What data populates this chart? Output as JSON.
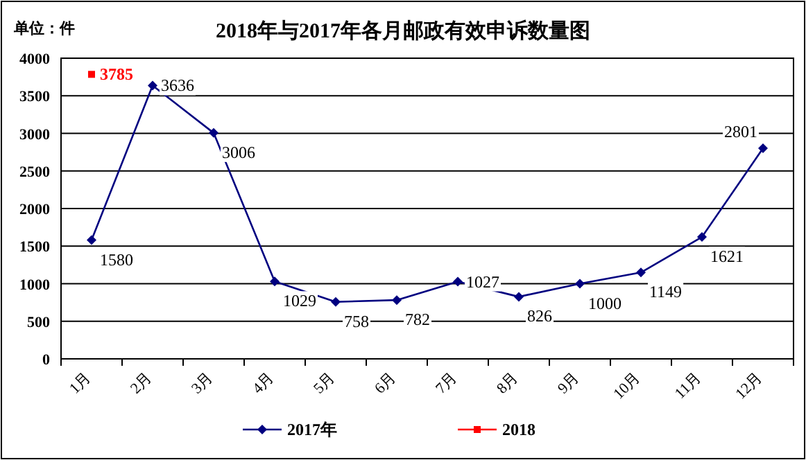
{
  "chart_data": {
    "type": "line",
    "title": "2018年与2017年各月邮政有效申诉数量图",
    "annotations": [
      "单位：件"
    ],
    "categories": [
      "1月",
      "2月",
      "3月",
      "4月",
      "5月",
      "6月",
      "7月",
      "8月",
      "9月",
      "10月",
      "11月",
      "12月"
    ],
    "series": [
      {
        "name": "2017年",
        "color": "#000080",
        "marker": "diamond",
        "values": [
          1580,
          3636,
          3006,
          1029,
          758,
          782,
          1027,
          826,
          1000,
          1149,
          1621,
          2801
        ]
      },
      {
        "name": "2018",
        "color": "#ff0000",
        "marker": "square",
        "values": [
          3785,
          null,
          null,
          null,
          null,
          null,
          null,
          null,
          null,
          null,
          null,
          null
        ]
      }
    ],
    "ylim": [
      0,
      4000
    ],
    "yticks": [
      0,
      500,
      1000,
      1500,
      2000,
      2500,
      3000,
      3500,
      4000
    ],
    "grid": "y",
    "legend": "bottom",
    "data_labels": true
  }
}
